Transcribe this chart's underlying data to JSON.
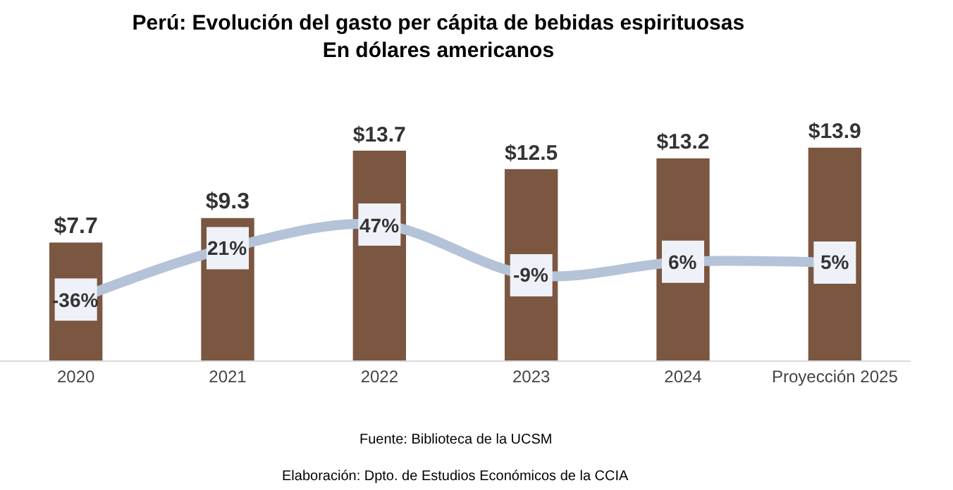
{
  "chart_data": {
    "type": "bar",
    "title": "Perú: Evolución del gasto per cápita de bebidas espirituosas\nEn dólares americanos",
    "categories": [
      "2020",
      "2021",
      "2022",
      "2023",
      "2024",
      "Proyección 2025"
    ],
    "series": [
      {
        "color": "#7b5641",
        "values": [
          7.7,
          9.3,
          13.7,
          12.5,
          13.2,
          13.9
        ],
        "value_labels": [
          "$7.7",
          "$9.3",
          "$13.7",
          "$12.5",
          "$13.2",
          "$13.9"
        ]
      },
      {
        "type": "line",
        "axis": "y2",
        "color": "#b4c3d8",
        "values": [
          -36,
          21,
          47,
          -9,
          6,
          5
        ],
        "value_labels": [
          "-36%",
          "21%",
          "47%",
          "-9%",
          "6%",
          "5%"
        ]
      }
    ],
    "tick_labels": "x",
    "marker": "square",
    "grid": false,
    "annotations": [
      "Fuente: Biblioteca de la UCSM",
      "Elaboración: Dpto. de Estudios Económicos de la CCIA"
    ]
  }
}
